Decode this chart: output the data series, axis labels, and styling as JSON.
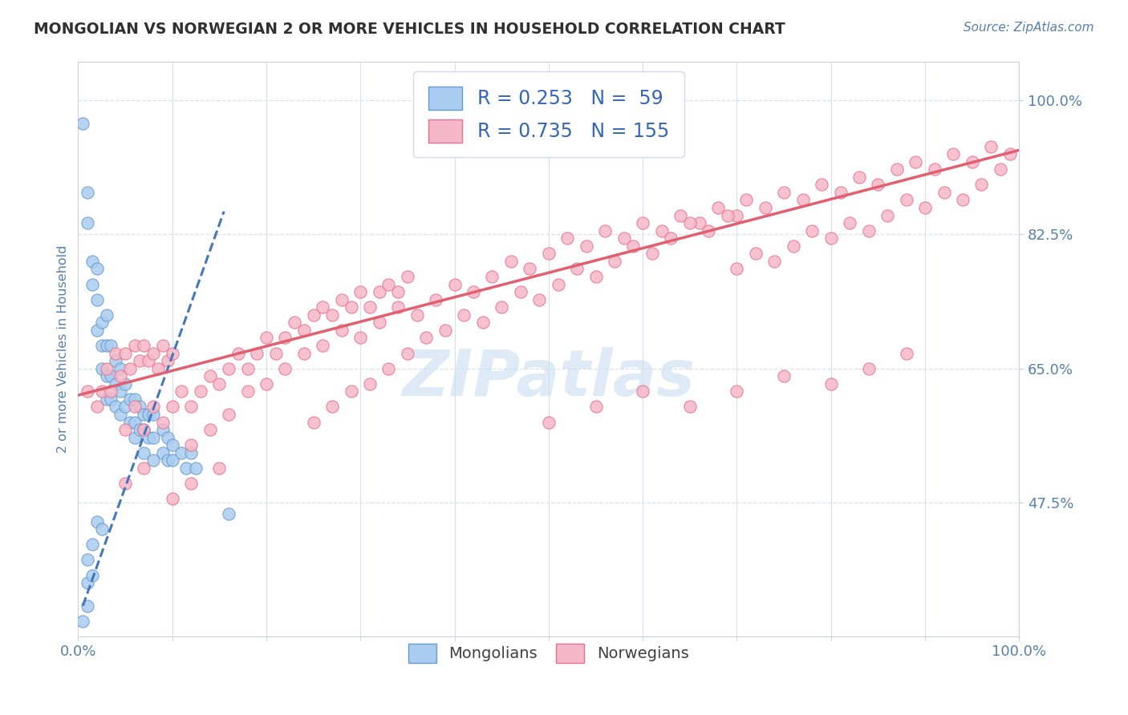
{
  "title": "MONGOLIAN VS NORWEGIAN 2 OR MORE VEHICLES IN HOUSEHOLD CORRELATION CHART",
  "source_text": "Source: ZipAtlas.com",
  "ylabel": "2 or more Vehicles in Household",
  "xlim": [
    0.0,
    1.0
  ],
  "ylim": [
    0.3,
    1.05
  ],
  "xtick_vals": [
    0.0,
    1.0
  ],
  "xtick_labels": [
    "0.0%",
    "100.0%"
  ],
  "ytick_positions": [
    0.475,
    0.65,
    0.825,
    1.0
  ],
  "ytick_labels": [
    "47.5%",
    "65.0%",
    "82.5%",
    "100.0%"
  ],
  "color_mongolian": "#aaccf0",
  "color_norwegian": "#f5b8c8",
  "color_mongolian_edge": "#6699cc",
  "color_norwegian_edge": "#e87090",
  "color_mongolian_line": "#4477bb",
  "color_norwegian_line": "#e06070",
  "watermark_color": "#c8dff0",
  "title_color": "#303030",
  "source_color": "#5580aa",
  "axis_label_color": "#5580aa",
  "tick_color": "#5580aa",
  "grid_color": "#d8e0ec",
  "mongolian_scatter": [
    [
      0.005,
      0.97
    ],
    [
      0.01,
      0.88
    ],
    [
      0.01,
      0.84
    ],
    [
      0.015,
      0.79
    ],
    [
      0.015,
      0.76
    ],
    [
      0.02,
      0.78
    ],
    [
      0.02,
      0.74
    ],
    [
      0.02,
      0.7
    ],
    [
      0.025,
      0.71
    ],
    [
      0.025,
      0.68
    ],
    [
      0.025,
      0.65
    ],
    [
      0.03,
      0.72
    ],
    [
      0.03,
      0.68
    ],
    [
      0.03,
      0.64
    ],
    [
      0.03,
      0.61
    ],
    [
      0.035,
      0.68
    ],
    [
      0.035,
      0.64
    ],
    [
      0.035,
      0.61
    ],
    [
      0.04,
      0.66
    ],
    [
      0.04,
      0.63
    ],
    [
      0.04,
      0.6
    ],
    [
      0.045,
      0.65
    ],
    [
      0.045,
      0.62
    ],
    [
      0.045,
      0.59
    ],
    [
      0.05,
      0.63
    ],
    [
      0.05,
      0.6
    ],
    [
      0.055,
      0.61
    ],
    [
      0.055,
      0.58
    ],
    [
      0.06,
      0.61
    ],
    [
      0.06,
      0.58
    ],
    [
      0.06,
      0.56
    ],
    [
      0.065,
      0.6
    ],
    [
      0.065,
      0.57
    ],
    [
      0.07,
      0.59
    ],
    [
      0.07,
      0.57
    ],
    [
      0.07,
      0.54
    ],
    [
      0.075,
      0.59
    ],
    [
      0.075,
      0.56
    ],
    [
      0.08,
      0.59
    ],
    [
      0.08,
      0.56
    ],
    [
      0.08,
      0.53
    ],
    [
      0.09,
      0.57
    ],
    [
      0.09,
      0.54
    ],
    [
      0.095,
      0.56
    ],
    [
      0.095,
      0.53
    ],
    [
      0.1,
      0.55
    ],
    [
      0.1,
      0.53
    ],
    [
      0.11,
      0.54
    ],
    [
      0.115,
      0.52
    ],
    [
      0.12,
      0.54
    ],
    [
      0.125,
      0.52
    ],
    [
      0.01,
      0.4
    ],
    [
      0.01,
      0.37
    ],
    [
      0.01,
      0.34
    ],
    [
      0.015,
      0.42
    ],
    [
      0.015,
      0.38
    ],
    [
      0.02,
      0.45
    ],
    [
      0.025,
      0.44
    ],
    [
      0.16,
      0.46
    ],
    [
      0.005,
      0.32
    ]
  ],
  "norwegian_scatter": [
    [
      0.01,
      0.62
    ],
    [
      0.02,
      0.6
    ],
    [
      0.025,
      0.62
    ],
    [
      0.03,
      0.65
    ],
    [
      0.035,
      0.62
    ],
    [
      0.04,
      0.67
    ],
    [
      0.045,
      0.64
    ],
    [
      0.05,
      0.67
    ],
    [
      0.055,
      0.65
    ],
    [
      0.06,
      0.68
    ],
    [
      0.065,
      0.66
    ],
    [
      0.07,
      0.68
    ],
    [
      0.075,
      0.66
    ],
    [
      0.08,
      0.67
    ],
    [
      0.085,
      0.65
    ],
    [
      0.09,
      0.68
    ],
    [
      0.095,
      0.66
    ],
    [
      0.1,
      0.67
    ],
    [
      0.05,
      0.57
    ],
    [
      0.06,
      0.6
    ],
    [
      0.07,
      0.57
    ],
    [
      0.08,
      0.6
    ],
    [
      0.09,
      0.58
    ],
    [
      0.1,
      0.6
    ],
    [
      0.11,
      0.62
    ],
    [
      0.12,
      0.6
    ],
    [
      0.13,
      0.62
    ],
    [
      0.14,
      0.64
    ],
    [
      0.15,
      0.63
    ],
    [
      0.16,
      0.65
    ],
    [
      0.17,
      0.67
    ],
    [
      0.18,
      0.65
    ],
    [
      0.19,
      0.67
    ],
    [
      0.2,
      0.69
    ],
    [
      0.21,
      0.67
    ],
    [
      0.22,
      0.69
    ],
    [
      0.23,
      0.71
    ],
    [
      0.24,
      0.7
    ],
    [
      0.25,
      0.72
    ],
    [
      0.26,
      0.73
    ],
    [
      0.27,
      0.72
    ],
    [
      0.28,
      0.74
    ],
    [
      0.29,
      0.73
    ],
    [
      0.3,
      0.75
    ],
    [
      0.31,
      0.73
    ],
    [
      0.32,
      0.75
    ],
    [
      0.33,
      0.76
    ],
    [
      0.34,
      0.75
    ],
    [
      0.35,
      0.77
    ],
    [
      0.12,
      0.55
    ],
    [
      0.14,
      0.57
    ],
    [
      0.16,
      0.59
    ],
    [
      0.18,
      0.62
    ],
    [
      0.2,
      0.63
    ],
    [
      0.22,
      0.65
    ],
    [
      0.24,
      0.67
    ],
    [
      0.26,
      0.68
    ],
    [
      0.28,
      0.7
    ],
    [
      0.3,
      0.69
    ],
    [
      0.32,
      0.71
    ],
    [
      0.34,
      0.73
    ],
    [
      0.36,
      0.72
    ],
    [
      0.38,
      0.74
    ],
    [
      0.4,
      0.76
    ],
    [
      0.42,
      0.75
    ],
    [
      0.44,
      0.77
    ],
    [
      0.46,
      0.79
    ],
    [
      0.48,
      0.78
    ],
    [
      0.5,
      0.8
    ],
    [
      0.52,
      0.82
    ],
    [
      0.54,
      0.81
    ],
    [
      0.56,
      0.83
    ],
    [
      0.58,
      0.82
    ],
    [
      0.6,
      0.84
    ],
    [
      0.62,
      0.83
    ],
    [
      0.64,
      0.85
    ],
    [
      0.66,
      0.84
    ],
    [
      0.68,
      0.86
    ],
    [
      0.7,
      0.85
    ],
    [
      0.25,
      0.58
    ],
    [
      0.27,
      0.6
    ],
    [
      0.29,
      0.62
    ],
    [
      0.31,
      0.63
    ],
    [
      0.33,
      0.65
    ],
    [
      0.35,
      0.67
    ],
    [
      0.37,
      0.69
    ],
    [
      0.39,
      0.7
    ],
    [
      0.41,
      0.72
    ],
    [
      0.43,
      0.71
    ],
    [
      0.45,
      0.73
    ],
    [
      0.47,
      0.75
    ],
    [
      0.49,
      0.74
    ],
    [
      0.51,
      0.76
    ],
    [
      0.53,
      0.78
    ],
    [
      0.55,
      0.77
    ],
    [
      0.57,
      0.79
    ],
    [
      0.59,
      0.81
    ],
    [
      0.61,
      0.8
    ],
    [
      0.63,
      0.82
    ],
    [
      0.65,
      0.84
    ],
    [
      0.67,
      0.83
    ],
    [
      0.69,
      0.85
    ],
    [
      0.71,
      0.87
    ],
    [
      0.73,
      0.86
    ],
    [
      0.75,
      0.88
    ],
    [
      0.77,
      0.87
    ],
    [
      0.79,
      0.89
    ],
    [
      0.81,
      0.88
    ],
    [
      0.83,
      0.9
    ],
    [
      0.85,
      0.89
    ],
    [
      0.87,
      0.91
    ],
    [
      0.89,
      0.92
    ],
    [
      0.91,
      0.91
    ],
    [
      0.93,
      0.93
    ],
    [
      0.95,
      0.92
    ],
    [
      0.97,
      0.94
    ],
    [
      0.99,
      0.93
    ],
    [
      0.7,
      0.78
    ],
    [
      0.72,
      0.8
    ],
    [
      0.74,
      0.79
    ],
    [
      0.76,
      0.81
    ],
    [
      0.78,
      0.83
    ],
    [
      0.8,
      0.82
    ],
    [
      0.82,
      0.84
    ],
    [
      0.84,
      0.83
    ],
    [
      0.86,
      0.85
    ],
    [
      0.88,
      0.87
    ],
    [
      0.9,
      0.86
    ],
    [
      0.92,
      0.88
    ],
    [
      0.94,
      0.87
    ],
    [
      0.96,
      0.89
    ],
    [
      0.98,
      0.91
    ],
    [
      0.5,
      0.58
    ],
    [
      0.55,
      0.6
    ],
    [
      0.6,
      0.62
    ],
    [
      0.65,
      0.6
    ],
    [
      0.7,
      0.62
    ],
    [
      0.75,
      0.64
    ],
    [
      0.8,
      0.63
    ],
    [
      0.84,
      0.65
    ],
    [
      0.88,
      0.67
    ],
    [
      0.05,
      0.5
    ],
    [
      0.07,
      0.52
    ],
    [
      0.1,
      0.48
    ],
    [
      0.12,
      0.5
    ],
    [
      0.15,
      0.52
    ]
  ],
  "mongolian_trendline_x": [
    0.005,
    0.155
  ],
  "mongolian_trendline_y": [
    0.34,
    0.855
  ],
  "norwegian_trendline_x": [
    0.0,
    1.0
  ],
  "norwegian_trendline_y": [
    0.615,
    0.935
  ]
}
